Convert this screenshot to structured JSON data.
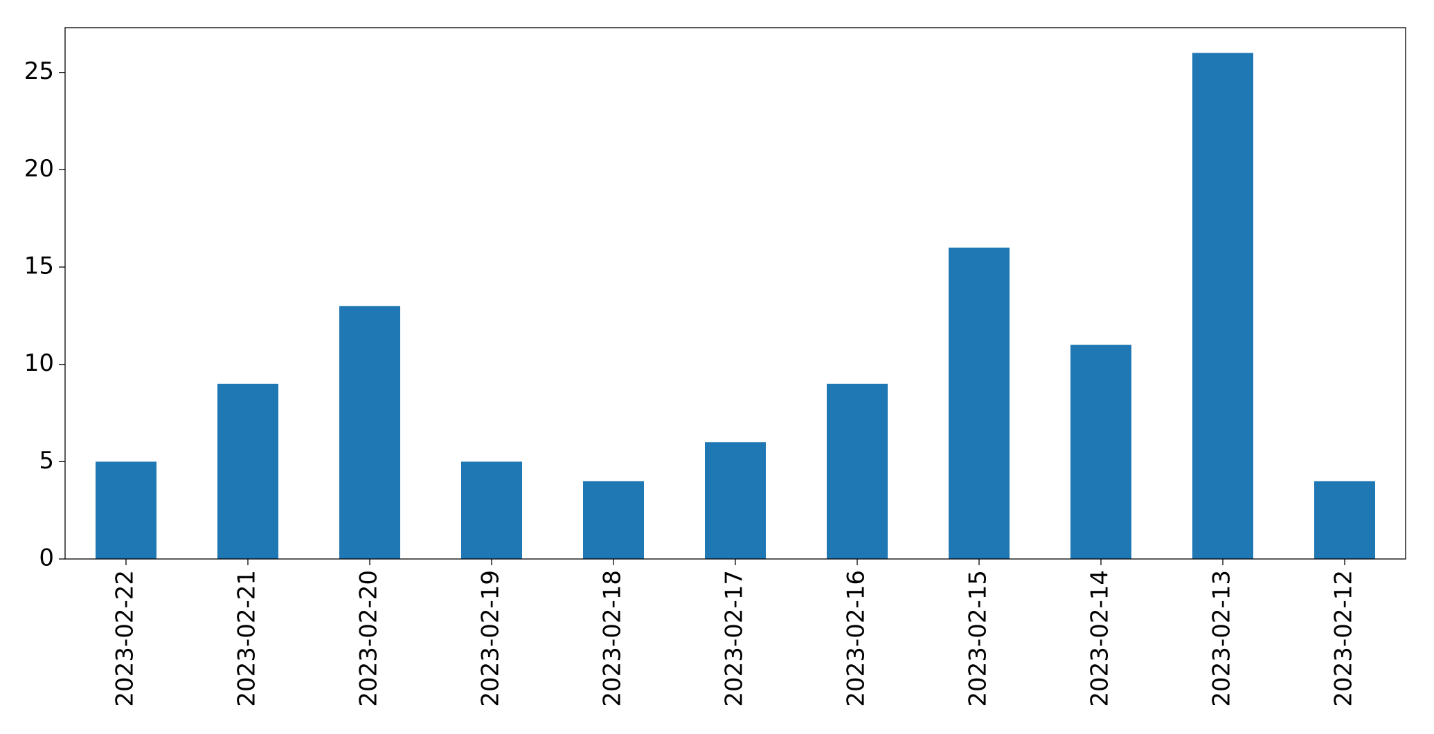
{
  "chart_data": {
    "type": "bar",
    "categories": [
      "2023-02-22",
      "2023-02-21",
      "2023-02-20",
      "2023-02-19",
      "2023-02-18",
      "2023-02-17",
      "2023-02-16",
      "2023-02-15",
      "2023-02-14",
      "2023-02-13",
      "2023-02-12"
    ],
    "values": [
      5,
      9,
      13,
      5,
      4,
      6,
      9,
      16,
      11,
      26,
      4
    ],
    "color": "#1f77b4",
    "ylim": [
      0,
      27.3
    ],
    "yticks": [
      0,
      5,
      10,
      15,
      20,
      25
    ],
    "grid": false
  }
}
